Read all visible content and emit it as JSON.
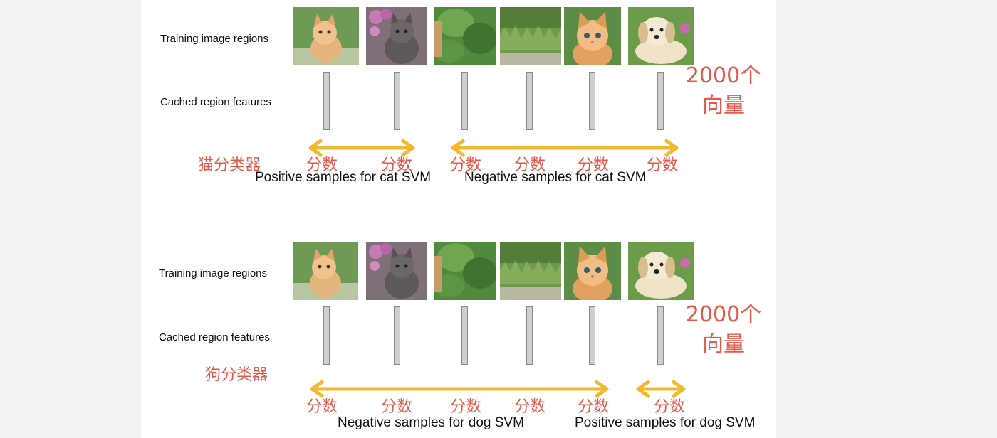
{
  "cat_panel": {
    "row_label_images": "Training image regions",
    "row_label_features": "Cached region features",
    "vector_count_line1": "2000个",
    "vector_count_line2": "向量",
    "classifier_label": "猫分类器",
    "score_label": "分数",
    "positive_caption": "Positive samples for cat SVM",
    "negative_caption": "Negative samples for cat SVM"
  },
  "dog_panel": {
    "row_label_images": "Training image regions",
    "row_label_features": "Cached region features",
    "vector_count_line1": "2000个",
    "vector_count_line2": "向量",
    "classifier_label": "狗分类器",
    "score_label": "分数",
    "negative_caption": "Negative samples for dog SVM",
    "positive_caption": "Positive samples for dog SVM"
  },
  "thumbnails": [
    "cat-kitten-orange",
    "cat-kitten-gray",
    "background-foliage",
    "background-grass",
    "cat-kitten-orange-2",
    "dog-puppy"
  ],
  "colors": {
    "accent_red": "#e8584a",
    "arrow_yellow": "#f2b830"
  }
}
